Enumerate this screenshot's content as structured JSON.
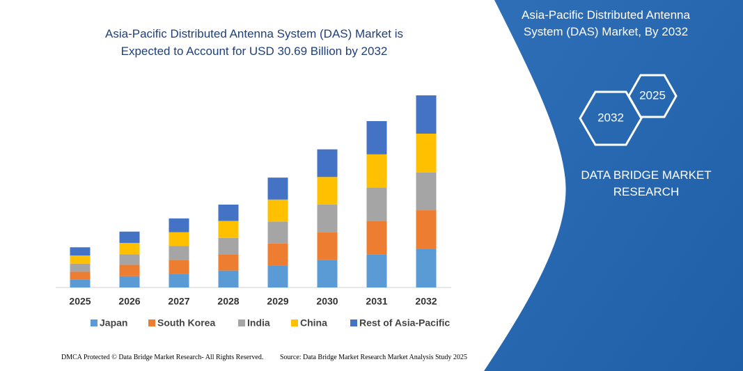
{
  "chart_data": {
    "type": "bar",
    "stacked": true,
    "title": "Asia-Pacific Distributed Antenna System (DAS) Market is Expected to Account for USD 30.69 Billion by 2032",
    "categories": [
      "2025",
      "2026",
      "2027",
      "2028",
      "2029",
      "2030",
      "2031",
      "2032"
    ],
    "series": [
      {
        "name": "Japan",
        "color": "#5b9bd5",
        "values": [
          1.3,
          1.8,
          2.2,
          2.7,
          3.5,
          4.4,
          5.3,
          6.1
        ]
      },
      {
        "name": "South Korea",
        "color": "#ed7d31",
        "values": [
          1.2,
          1.8,
          2.2,
          2.6,
          3.5,
          4.4,
          5.3,
          6.2
        ]
      },
      {
        "name": "India",
        "color": "#a5a5a5",
        "values": [
          1.3,
          1.7,
          2.2,
          2.6,
          3.5,
          4.4,
          5.3,
          6.0
        ]
      },
      {
        "name": "China",
        "color": "#ffc000",
        "values": [
          1.3,
          1.8,
          2.2,
          2.7,
          3.5,
          4.4,
          5.3,
          6.2
        ]
      },
      {
        "name": "Rest of Asia-Pacific",
        "color": "#4472c4",
        "values": [
          1.3,
          1.8,
          2.2,
          2.6,
          3.5,
          4.4,
          5.3,
          6.1
        ]
      }
    ],
    "legend": "bottom"
  },
  "panel": {
    "title": "Asia-Pacific Distributed Antenna System (DAS) Market, By 2032",
    "hexagons": [
      "2032",
      "2025"
    ],
    "brand": "DATA BRIDGE MARKET RESEARCH"
  },
  "footer": {
    "left": "DMCA Protected © Data Bridge Market Research- All Rights Reserved.",
    "right": "Source: Data Bridge Market Research Market Analysis Study 2025"
  }
}
